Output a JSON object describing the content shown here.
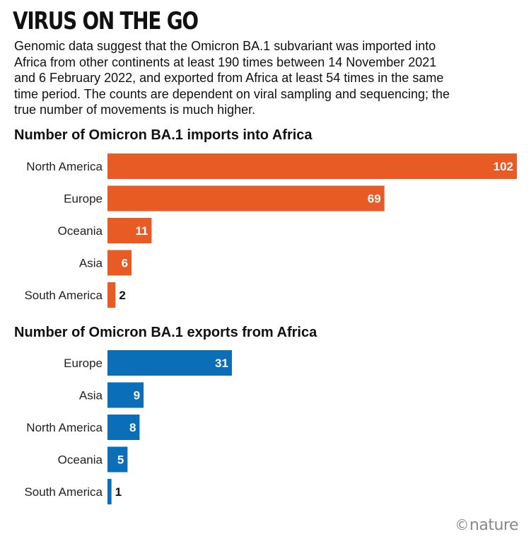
{
  "title": "VIRUS ON THE GO",
  "subtitle": "Genomic data suggest that the Omicron BA.1 subvariant was imported into Africa from other continents at least 190 times between 14 November 2021 and 6 February 2022, and exported from Africa at least 54 times in the same time period. The counts are dependent on viral sampling and sequencing; the true number of movements is much higher.",
  "logo": {
    "symbol": "©",
    "text": "nature"
  },
  "colors": {
    "imports": "#e85b25",
    "exports": "#0a6fb8"
  },
  "chart_data": [
    {
      "type": "bar",
      "orientation": "horizontal",
      "title": "Number of Omicron BA.1 imports into Africa",
      "categories": [
        "North America",
        "Europe",
        "Oceania",
        "Asia",
        "South America"
      ],
      "values": [
        102,
        69,
        11,
        6,
        2
      ],
      "color": "#e85b25"
    },
    {
      "type": "bar",
      "orientation": "horizontal",
      "title": "Number of Omicron BA.1 exports from Africa",
      "categories": [
        "Europe",
        "Asia",
        "North America",
        "Oceania",
        "South America"
      ],
      "values": [
        31,
        9,
        8,
        5,
        1
      ],
      "color": "#0a6fb8"
    }
  ]
}
